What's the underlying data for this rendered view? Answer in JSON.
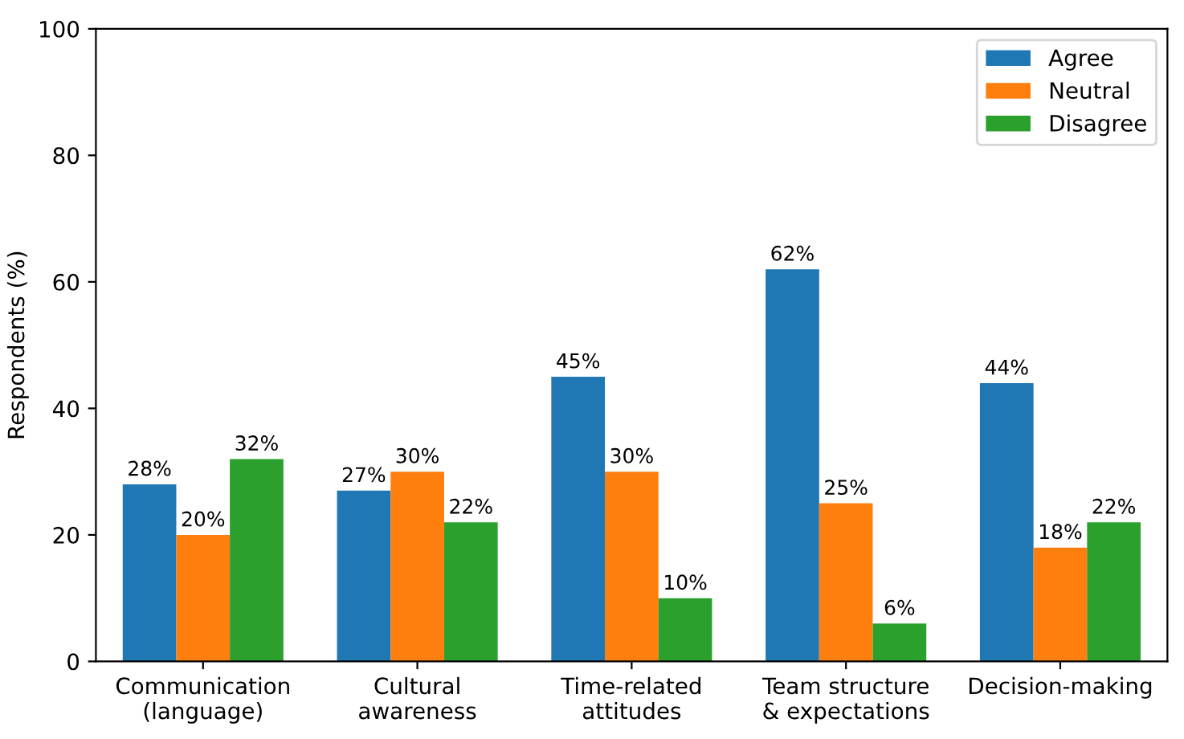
{
  "chart_data": {
    "type": "bar",
    "ylabel": "Respondents (%)",
    "categories": [
      "Communication\n(language)",
      "Cultural\nawareness",
      "Time-related\nattitudes",
      "Team structure\n& expectations",
      "Decision-making"
    ],
    "series": [
      {
        "name": "Agree",
        "color": "#1f77b4",
        "values": [
          28,
          27,
          45,
          62,
          44
        ],
        "value_labels": [
          "28%",
          "27%",
          "45%",
          "62%",
          "44%"
        ]
      },
      {
        "name": "Neutral",
        "color": "#ff7f0e",
        "values": [
          20,
          30,
          30,
          25,
          18
        ],
        "value_labels": [
          "20%",
          "30%",
          "30%",
          "25%",
          "18%"
        ]
      },
      {
        "name": "Disagree",
        "color": "#2ca02c",
        "values": [
          32,
          22,
          10,
          6,
          22
        ],
        "value_labels": [
          "32%",
          "22%",
          "10%",
          "6%",
          "22%"
        ]
      }
    ],
    "ylim": [
      0,
      100
    ],
    "yticks": [
      0,
      20,
      40,
      60,
      80,
      100
    ],
    "grid": false,
    "legend": "top right"
  }
}
